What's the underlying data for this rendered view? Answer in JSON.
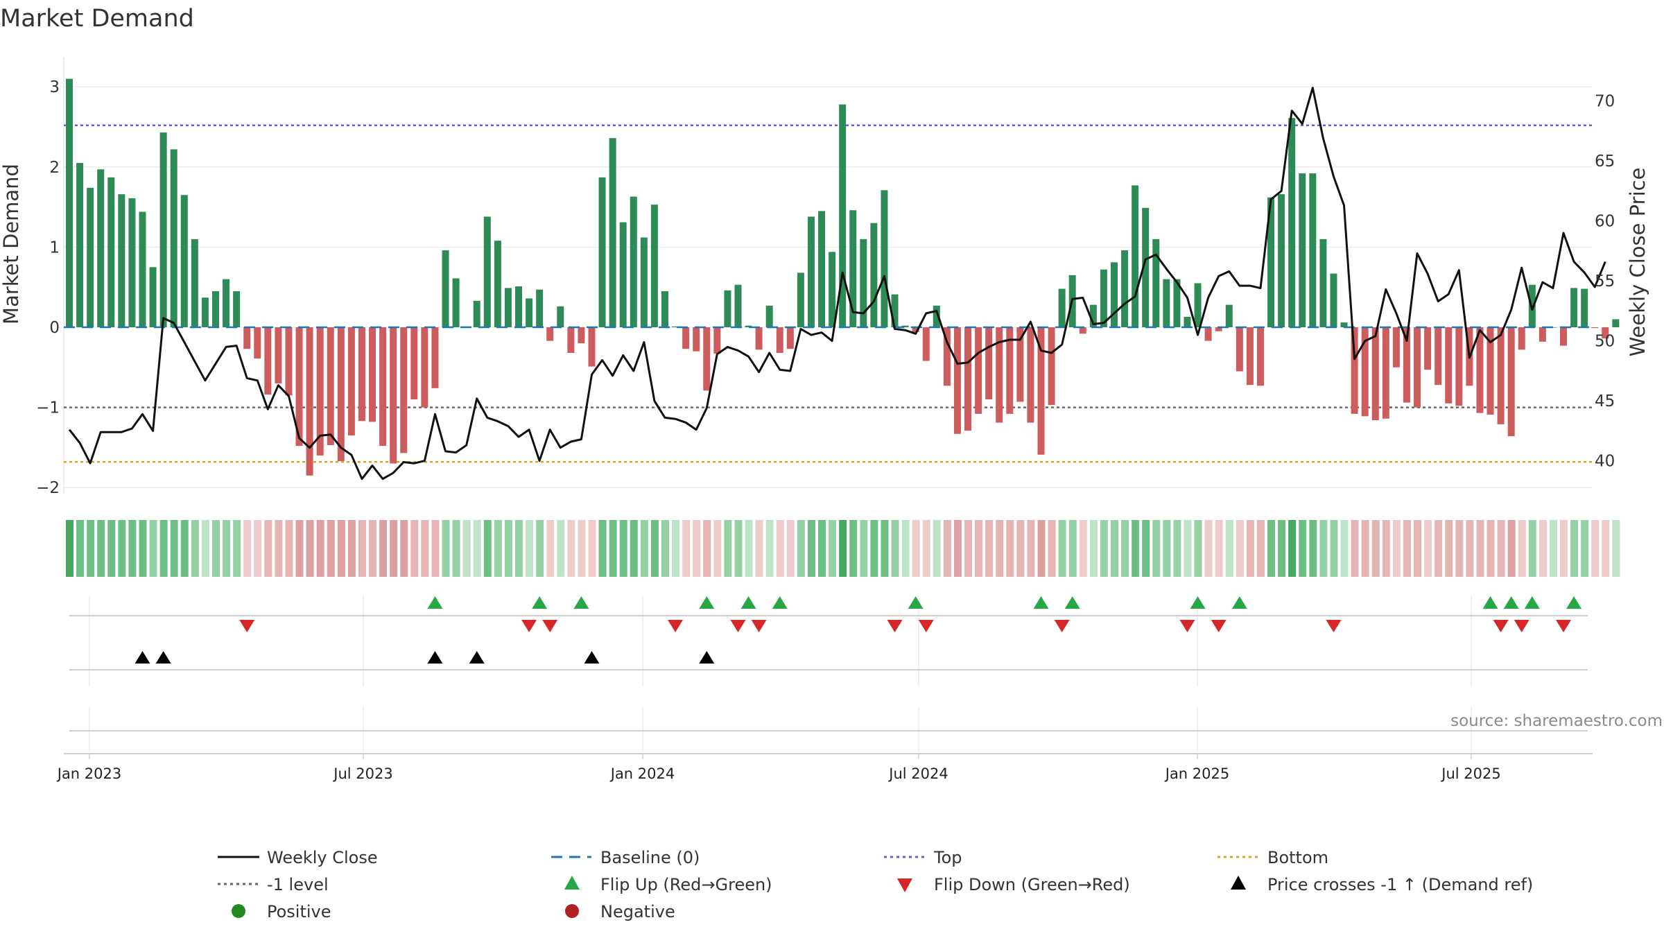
{
  "chart_data": {
    "type": "bar",
    "title": "Market Demand",
    "ylabel": "Market Demand",
    "y2label": "Weekly Close Price",
    "ylim": [
      -2.2,
      3.2
    ],
    "y2lim": [
      36.5,
      72.5
    ],
    "yticks": [
      -2,
      -1,
      0,
      1,
      2,
      3
    ],
    "y2ticks": [
      40,
      45,
      50,
      55,
      60,
      65,
      70
    ],
    "date_ticks": [
      "Jan 2023",
      "Jul 2023",
      "Jan 2024",
      "Jul 2024",
      "Jan 2025",
      "Jul 2025"
    ],
    "reference_levels": {
      "top": 2.52,
      "minus_one": -1.0,
      "bottom": -1.68,
      "baseline": 0
    },
    "demand": [
      3.1,
      2.05,
      1.74,
      1.97,
      1.87,
      1.66,
      1.61,
      1.44,
      0.75,
      2.43,
      2.22,
      1.65,
      1.1,
      0.37,
      0.45,
      0.6,
      0.45,
      -0.27,
      -0.39,
      -0.84,
      -0.7,
      -0.85,
      -1.48,
      -1.85,
      -1.6,
      -1.47,
      -1.67,
      -1.35,
      -1.17,
      -1.18,
      -1.48,
      -1.7,
      -1.57,
      -0.9,
      -1.0,
      -0.76,
      0.96,
      0.61,
      0.01,
      0.33,
      1.38,
      1.08,
      0.49,
      0.51,
      0.36,
      0.47,
      -0.17,
      0.26,
      -0.32,
      -0.2,
      -0.49,
      1.87,
      2.36,
      1.31,
      1.63,
      1.12,
      1.53,
      0.45,
      0.01,
      -0.27,
      -0.3,
      -0.79,
      -0.33,
      0.46,
      0.53,
      0.02,
      -0.28,
      0.27,
      -0.32,
      -0.27,
      0.68,
      1.38,
      1.45,
      0.94,
      2.78,
      1.46,
      1.1,
      1.3,
      1.71,
      0.41,
      0.02,
      -0.06,
      -0.42,
      0.27,
      -0.73,
      -1.33,
      -1.29,
      -1.08,
      -0.9,
      -1.19,
      -1.08,
      -0.93,
      -1.19,
      -1.59,
      -0.97,
      0.48,
      0.65,
      -0.08,
      0.28,
      0.72,
      0.81,
      0.96,
      1.77,
      1.49,
      1.1,
      0.6,
      0.6,
      0.13,
      0.55,
      -0.17,
      -0.05,
      0.28,
      -0.55,
      -0.72,
      -0.73,
      1.62,
      1.66,
      2.61,
      1.92,
      1.92,
      1.1,
      0.67,
      0.06,
      -1.08,
      -1.11,
      -1.16,
      -1.14,
      -0.5,
      -0.94,
      -1.0,
      -0.53,
      -0.72,
      -0.95,
      -0.98,
      -0.73,
      -1.07,
      -1.09,
      -1.21,
      -1.36,
      -0.28,
      0.53,
      -0.18,
      0.0,
      -0.23,
      0.49,
      0.48,
      -0.01,
      -0.14,
      0.1
    ],
    "weekly_close": [
      42.6,
      41.5,
      39.8,
      42.4,
      42.4,
      42.4,
      42.7,
      43.9,
      42.5,
      51.9,
      51.5,
      49.9,
      48.3,
      46.7,
      48.1,
      49.5,
      49.6,
      46.9,
      46.7,
      44.3,
      46.3,
      45.4,
      41.9,
      41.1,
      42.1,
      42.2,
      41.1,
      40.5,
      38.5,
      39.6,
      38.5,
      39.0,
      39.9,
      39.8,
      40.0,
      43.9,
      40.8,
      40.7,
      41.3,
      45.2,
      43.6,
      43.3,
      42.9,
      42.0,
      42.6,
      40.0,
      42.6,
      41.1,
      41.6,
      41.8,
      47.2,
      48.4,
      47.1,
      48.8,
      47.5,
      49.9,
      45.0,
      43.6,
      43.5,
      43.2,
      42.6,
      44.4,
      48.9,
      49.5,
      49.2,
      48.7,
      47.4,
      49.0,
      47.6,
      47.5,
      51.0,
      50.5,
      50.7,
      50.0,
      55.7,
      52.4,
      52.3,
      53.3,
      55.4,
      51.0,
      50.9,
      50.6,
      52.3,
      52.5,
      49.9,
      48.1,
      48.2,
      49.0,
      49.5,
      49.9,
      50.1,
      50.1,
      51.6,
      49.2,
      49.0,
      49.7,
      53.5,
      53.6,
      51.4,
      51.5,
      52.3,
      53.1,
      53.7,
      56.8,
      57.2,
      56.0,
      54.9,
      53.6,
      50.5,
      53.6,
      55.4,
      55.8,
      54.6,
      54.6,
      54.4,
      61.8,
      62.5,
      69.2,
      68.1,
      71.1,
      66.9,
      63.7,
      61.3,
      48.5,
      50.0,
      50.4,
      54.3,
      52.3,
      50.0,
      57.3,
      55.6,
      53.3,
      53.9,
      55.9,
      48.6,
      50.9,
      49.9,
      50.5,
      52.6,
      56.1,
      52.6,
      54.9,
      54.4,
      59.0,
      56.6,
      55.7,
      54.5,
      56.6
    ],
    "status_colors": [
      "#46a862",
      "#6cbe83",
      "#96d0a5",
      "#bfe3c8",
      "#eecccc",
      "#e5b4b4",
      "#dca0a0"
    ],
    "flip_up_weeks": [
      35,
      45,
      49,
      61,
      65,
      68,
      81,
      93,
      96,
      108,
      112,
      136,
      138,
      140,
      144
    ],
    "flip_down_weeks": [
      17,
      44,
      46,
      58,
      64,
      66,
      79,
      82,
      95,
      107,
      110,
      121,
      137,
      139,
      143
    ],
    "price_cross_weeks": [
      7,
      9,
      35,
      39,
      50,
      61
    ],
    "colors": {
      "positive_bar": "#2e8b57",
      "negative_bar": "#cd5c5c",
      "close_line": "#111111",
      "baseline": "#1f77b4",
      "top": "#6a5acd",
      "minus_one": "#666666",
      "bottom": "#daa520",
      "flip_up": "#28a745",
      "flip_down": "#d62728",
      "cross": "#000000",
      "positive_dot": "#228b22",
      "negative_dot": "#b22222"
    }
  },
  "legend": {
    "weekly_close": "Weekly Close",
    "baseline": "Baseline (0)",
    "top": "Top",
    "bottom": "Bottom",
    "minus_one": "-1 level",
    "flip_up": "Flip Up (Red→Green)",
    "flip_down": "Flip Down (Green→Red)",
    "price_cross": "Price crosses -1 ↑ (Demand ref)",
    "positive": "Positive",
    "negative": "Negative"
  },
  "source": "source: sharemaestro.com"
}
